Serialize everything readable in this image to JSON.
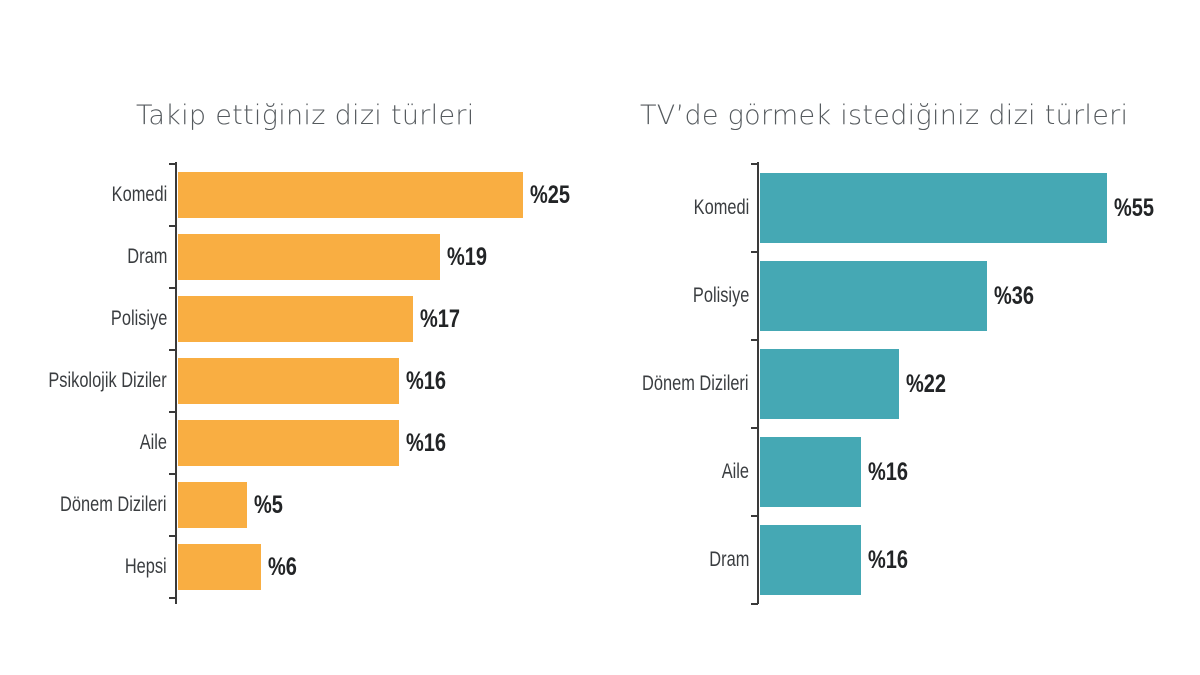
{
  "chart_data": [
    {
      "type": "bar",
      "orientation": "horizontal",
      "title": "Takip ettiğiniz dizi türleri",
      "categories": [
        "Komedi",
        "Dram",
        "Polisiye",
        "Psikolojik Diziler",
        "Aile",
        "Dönem Dizileri",
        "Hepsi"
      ],
      "values": [
        25,
        19,
        17,
        16,
        16,
        5,
        6
      ],
      "value_labels": [
        "%25",
        "%19",
        "%17",
        "%16",
        "%16",
        "%5",
        "%6"
      ],
      "color": "#F9AE42",
      "xlabel": "",
      "ylabel": "",
      "grid": false
    },
    {
      "type": "bar",
      "orientation": "horizontal",
      "title": "TV’de görmek istediğiniz dizi türleri",
      "categories": [
        "Komedi",
        "Polisiye",
        "Dönem Dizileri",
        "Aile",
        "Dram"
      ],
      "values": [
        55,
        36,
        22,
        16,
        16
      ],
      "value_labels": [
        "%55",
        "%36",
        "%22",
        "%16",
        "%16"
      ],
      "color": "#45A8B4",
      "xlabel": "",
      "ylabel": "",
      "grid": false
    }
  ]
}
